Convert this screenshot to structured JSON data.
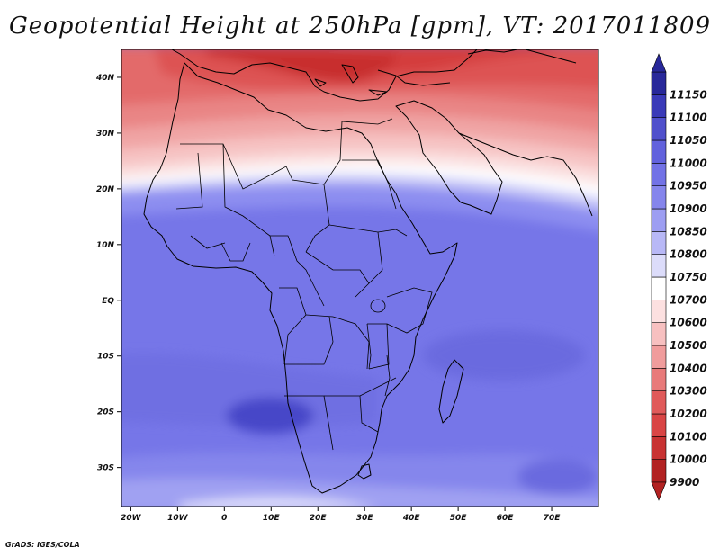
{
  "title": "Geopotential Height at 250hPa [gpm], VT: 2017011809",
  "credit": "GrADS: IGES/COLA",
  "map": {
    "lon_range": [
      -22,
      80
    ],
    "lat_range": [
      -37,
      45
    ],
    "x_ticks": [
      {
        "lon": -20,
        "label": "20W"
      },
      {
        "lon": -10,
        "label": "10W"
      },
      {
        "lon": 0,
        "label": "0"
      },
      {
        "lon": 10,
        "label": "10E"
      },
      {
        "lon": 20,
        "label": "20E"
      },
      {
        "lon": 30,
        "label": "30E"
      },
      {
        "lon": 40,
        "label": "40E"
      },
      {
        "lon": 50,
        "label": "50E"
      },
      {
        "lon": 60,
        "label": "60E"
      },
      {
        "lon": 70,
        "label": "70E"
      }
    ],
    "y_ticks": [
      {
        "lat": 40,
        "label": "40N"
      },
      {
        "lat": 30,
        "label": "30N"
      },
      {
        "lat": 20,
        "label": "20N"
      },
      {
        "lat": 10,
        "label": "10N"
      },
      {
        "lat": 0,
        "label": "EQ"
      },
      {
        "lat": -10,
        "label": "10S"
      },
      {
        "lat": -20,
        "label": "20S"
      },
      {
        "lat": -30,
        "label": "30S"
      }
    ]
  },
  "colorbar": {
    "min_label": "9900",
    "levels": [
      "10000",
      "10100",
      "10200",
      "10300",
      "10400",
      "10500",
      "10600",
      "10700",
      "10750",
      "10800",
      "10850",
      "10900",
      "10950",
      "11000",
      "11050",
      "11100",
      "11150"
    ],
    "colors": [
      "#b22222",
      "#c83232",
      "#d94545",
      "#e05a5a",
      "#e87a7a",
      "#f09c9c",
      "#f7c0c0",
      "#fce0e0",
      "#ffffff",
      "#dcdcfa",
      "#b8b8f6",
      "#9d9ef2",
      "#8585ec",
      "#7272e6",
      "#6262dd",
      "#5050cc",
      "#3a3ab8",
      "#28289a"
    ]
  }
}
